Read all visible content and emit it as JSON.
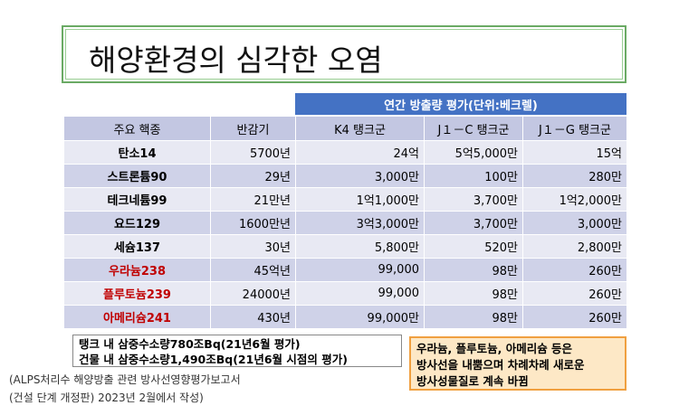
{
  "title": "해양환경의 심각한 오염",
  "table": {
    "group_header": "연간 방출량 평가(단위:베크렐)",
    "columns": [
      "주요 핵종",
      "반감기",
      "K4 탱크군",
      "J１－C 탱크군",
      "J１－G 탱크군"
    ],
    "rows": [
      {
        "cells": [
          "탄소14",
          "5700년",
          "24억",
          "5억5,000만",
          "15억"
        ],
        "name_color": "#000000"
      },
      {
        "cells": [
          "스트론튬90",
          "29년",
          "3,000만",
          "100만",
          "280만"
        ],
        "name_color": "#000000"
      },
      {
        "cells": [
          "테크네튬99",
          "21만년",
          "1억1,000만",
          "3,700만",
          "1억2,000만"
        ],
        "name_color": "#000000"
      },
      {
        "cells": [
          "요드129",
          "1600만년",
          "3억3,000만",
          "3,700만",
          "3,000만"
        ],
        "name_color": "#000000"
      },
      {
        "cells": [
          "세슘137",
          "30년",
          "5,800만",
          "520만",
          "2,800만"
        ],
        "name_color": "#000000"
      },
      {
        "cells": [
          "우라늄238",
          "45억년",
          "99,000",
          "98만",
          "260만"
        ],
        "name_color": "#c00000"
      },
      {
        "cells": [
          "플루토늄239",
          "24000년",
          "99,000",
          "98만",
          "260만"
        ],
        "name_color": "#c00000"
      },
      {
        "cells": [
          "아메리슘241",
          "430년",
          "99,000만",
          "98만",
          "260만"
        ],
        "name_color": "#c00000"
      }
    ]
  },
  "notes": {
    "left": [
      "탱크 내 삼중수소량780조Bq(21년6월 평가)",
      "건물 내 삼중수소량1,490조Bq(21년6월 시점의 평가)"
    ],
    "right": [
      "우라늄, 플루토늄, 아메리슘 등은",
      "방사선을 내뿜으며 차례차례 새로운",
      "방사성물질로 계속 바뀜"
    ]
  },
  "source": [
    "(ALPS처리수 해양방출 관련 방사선영향평가보고서",
    "(건설 단계 개정판) 2023년 2월에서 작성)"
  ]
}
